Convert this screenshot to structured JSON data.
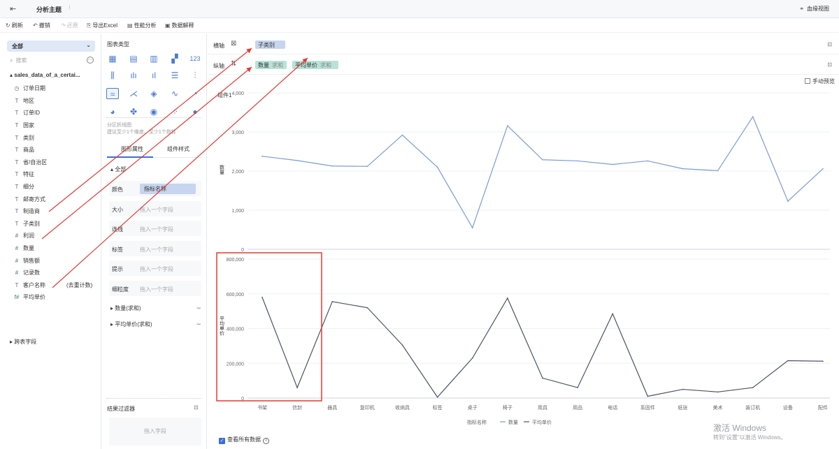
{
  "topbar": {
    "back_icon": "exit-icon",
    "title": "分析主题",
    "more": "⁝",
    "lineage": "血缘视图"
  },
  "toolbar": {
    "refresh": "刷新",
    "undo": "撤销",
    "redo": "还原",
    "export": "导出Excel",
    "perf": "性能分析",
    "explain": "数据解释"
  },
  "left": {
    "selector": "全部",
    "search_placeholder": "搜索",
    "table_name": "sales_data_of_a_certai...",
    "fields": [
      {
        "icon": "◷",
        "type": "date",
        "name": "订单日期",
        "extra": ""
      },
      {
        "icon": "T",
        "type": "text",
        "name": "地区",
        "extra": ""
      },
      {
        "icon": "T",
        "type": "text",
        "name": "订单ID",
        "extra": ""
      },
      {
        "icon": "T",
        "type": "text",
        "name": "国家",
        "extra": ""
      },
      {
        "icon": "T",
        "type": "text",
        "name": "类别",
        "extra": ""
      },
      {
        "icon": "T",
        "type": "text",
        "name": "商品",
        "extra": ""
      },
      {
        "icon": "T",
        "type": "text",
        "name": "省/自治区",
        "extra": ""
      },
      {
        "icon": "T",
        "type": "text",
        "name": "特征",
        "extra": ""
      },
      {
        "icon": "T",
        "type": "text",
        "name": "细分",
        "extra": ""
      },
      {
        "icon": "T",
        "type": "text",
        "name": "邮寄方式",
        "extra": ""
      },
      {
        "icon": "T",
        "type": "text",
        "name": "制造商",
        "extra": ""
      },
      {
        "icon": "T",
        "type": "text",
        "name": "子类别",
        "extra": ""
      },
      {
        "icon": "#",
        "type": "num",
        "name": "利润",
        "extra": ""
      },
      {
        "icon": "#",
        "type": "num",
        "name": "数量",
        "extra": ""
      },
      {
        "icon": "#",
        "type": "num",
        "name": "销售额",
        "extra": ""
      },
      {
        "icon": "#",
        "type": "num",
        "name": "记录数",
        "extra": ""
      },
      {
        "icon": "T",
        "type": "text",
        "name": "客户名称",
        "extra": "(去重计数)"
      },
      {
        "icon": "f#",
        "type": "num",
        "name": "平均单价",
        "extra": ""
      }
    ],
    "other_fields": "跨表字段"
  },
  "mid": {
    "chart_type_title": "图表类型",
    "hint_line1": "分区折线图",
    "hint_line2": "建议至少1个维度、至少1个指标",
    "tab_props": "图形属性",
    "tab_style": "组件样式",
    "all_label": "全部",
    "props": [
      {
        "label": "颜色",
        "value": "指标名称",
        "tag": true
      },
      {
        "label": "大小",
        "value": "拖入一个字段",
        "tag": false
      },
      {
        "label": "连线",
        "value": "拖入一个字段",
        "tag": false
      },
      {
        "label": "标签",
        "value": "拖入一个字段",
        "tag": false
      },
      {
        "label": "提示",
        "value": "拖入一个字段",
        "tag": false
      },
      {
        "label": "细粒度",
        "value": "拖入一个字段",
        "tag": false
      }
    ],
    "measure1": "数量(求和)",
    "measure2": "平均单价(求和)",
    "filter_title": "结果过滤器",
    "filter_placeholder": "拖入字段"
  },
  "main": {
    "x_axis_label": "横轴",
    "y_axis_label": "纵轴",
    "x_pill": "子类别",
    "y_pill1": "数量",
    "y_pill1_agg": "求和",
    "y_pill2": "平均单价",
    "y_pill2_agg": "求和",
    "manual_preview": "手动预览",
    "show_all": "查看所有数据",
    "watermark_line1": "激活 Windows",
    "watermark_line2": "转到\"设置\"以激活 Windows。"
  },
  "colors": {
    "accent": "#3a6fd8",
    "line_top": "#7b9bd8",
    "line_bottom": "#4a5466",
    "highlight": "#e53935",
    "arrow": "#e53935"
  },
  "chart_data": [
    {
      "type": "line",
      "title": "组件1",
      "ylabel": "数量",
      "categories": [
        "书架",
        "信封",
        "器具",
        "复印机",
        "收纳具",
        "标签",
        "桌子",
        "椅子",
        "用具",
        "用品",
        "电话",
        "系固件",
        "纸张",
        "美术",
        "装订机",
        "设备",
        "配件"
      ],
      "series": [
        {
          "name": "数量",
          "values": [
            2380,
            2270,
            2130,
            2120,
            2920,
            2100,
            550,
            3160,
            2290,
            2260,
            2170,
            2260,
            2060,
            2010,
            3390,
            1230,
            2060
          ]
        }
      ],
      "ylim": [
        0,
        4000
      ],
      "yticks": [
        "0",
        "1,000",
        "2,000",
        "3,000",
        "4,000"
      ],
      "grid": true
    },
    {
      "type": "line",
      "ylabel": "平均单价",
      "xlabel": "指标名称",
      "categories": [
        "书架",
        "信封",
        "器具",
        "复印机",
        "收纳具",
        "标签",
        "桌子",
        "椅子",
        "用具",
        "用品",
        "电话",
        "系固件",
        "纸张",
        "美术",
        "装订机",
        "设备",
        "配件"
      ],
      "series": [
        {
          "name": "平均单价",
          "values": [
            580000,
            60000,
            555000,
            520000,
            305000,
            5000,
            230000,
            575000,
            115000,
            60000,
            485000,
            10000,
            50000,
            35000,
            60000,
            215000,
            212000
          ]
        }
      ],
      "ylim": [
        0,
        800000
      ],
      "yticks": [
        "0",
        "200,000",
        "400,000",
        "600,000",
        "800,000"
      ],
      "grid": true,
      "legend": [
        "数量",
        "平均单价"
      ]
    }
  ]
}
